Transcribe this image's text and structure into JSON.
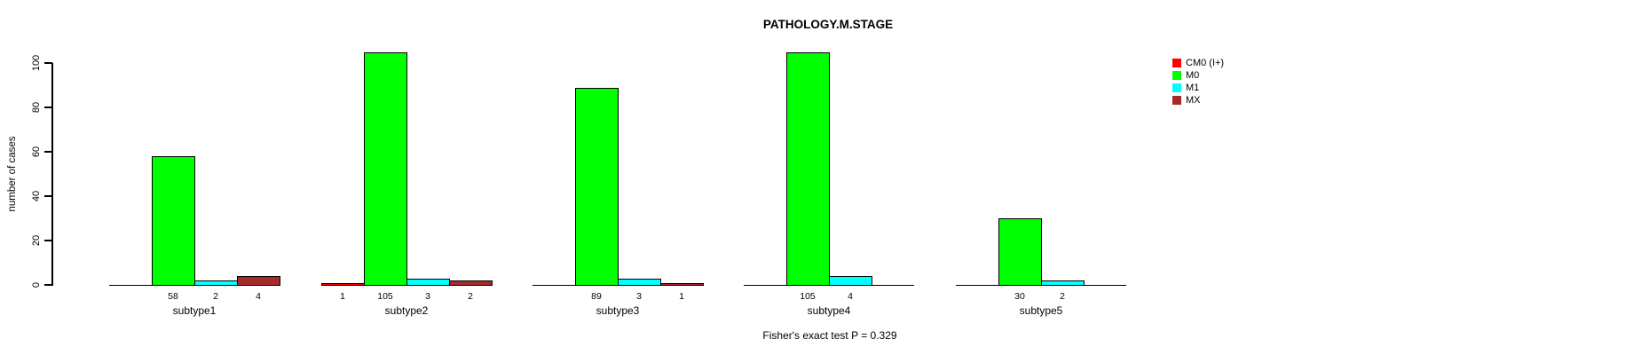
{
  "title": "PATHOLOGY.M.STAGE",
  "footer": "Fisher's exact test P = 0.329",
  "colors": {
    "background": "#FFFFFF",
    "axis": "#000000",
    "cm0": "#FF0000",
    "m0": "#00FF00",
    "m1": "#00FFFF",
    "mx": "#A52A2A"
  },
  "chart_data": {
    "type": "bar",
    "title": "PATHOLOGY.M.STAGE",
    "xlabel": "",
    "ylabel": "number of cases",
    "ylim": [
      0,
      105
    ],
    "yticks": [
      0,
      20,
      40,
      60,
      80,
      100
    ],
    "grid": false,
    "legend_position": "right",
    "categories": [
      "subtype1",
      "subtype2",
      "subtype3",
      "subtype4",
      "subtype5"
    ],
    "series": [
      {
        "name": "CM0 (I+)",
        "color": "#FF0000",
        "values": [
          null,
          1,
          null,
          null,
          null
        ]
      },
      {
        "name": "M0",
        "color": "#00FF00",
        "values": [
          58,
          105,
          89,
          105,
          30
        ]
      },
      {
        "name": "M1",
        "color": "#00FFFF",
        "values": [
          2,
          3,
          3,
          4,
          2
        ]
      },
      {
        "name": "MX",
        "color": "#A52A2A",
        "values": [
          4,
          2,
          1,
          null,
          null
        ]
      }
    ],
    "bar_value_labels": {
      "subtype1": [
        null,
        58,
        2,
        4
      ],
      "subtype2": [
        1,
        105,
        3,
        2
      ],
      "subtype3": [
        null,
        89,
        3,
        1
      ],
      "subtype4": [
        null,
        105,
        4,
        null
      ],
      "subtype5": [
        null,
        30,
        2,
        null
      ]
    },
    "annotation": "Fisher's exact test P = 0.329"
  }
}
